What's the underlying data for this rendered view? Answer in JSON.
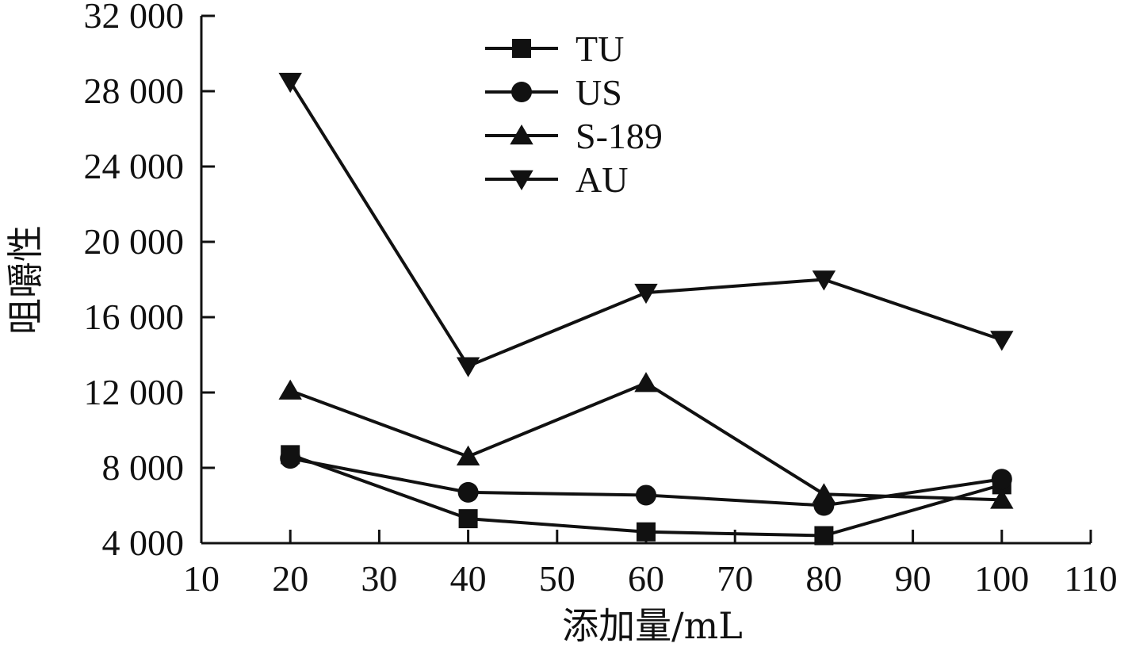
{
  "chart_data": {
    "type": "line",
    "title": "",
    "xlabel": "添加量/mL",
    "ylabel": "咀嚼性",
    "xlim": [
      10,
      110
    ],
    "ylim": [
      4000,
      32000
    ],
    "x_ticks": [
      10,
      20,
      30,
      40,
      50,
      60,
      70,
      80,
      90,
      100,
      110
    ],
    "y_ticks": [
      4000,
      8000,
      12000,
      16000,
      20000,
      24000,
      28000,
      32000
    ],
    "y_tick_labels": [
      "4 000",
      "8 000",
      "12 000",
      "16 000",
      "20 000",
      "24 000",
      "28 000",
      "32 000"
    ],
    "grid": false,
    "legend_position": "top-center",
    "x": [
      20,
      40,
      60,
      80,
      100
    ],
    "series": [
      {
        "name": "TU",
        "marker": "square",
        "color": "#111111",
        "values": [
          8700,
          5300,
          4600,
          4400,
          7100
        ]
      },
      {
        "name": "US",
        "marker": "circle",
        "color": "#111111",
        "values": [
          8500,
          6700,
          6550,
          6000,
          7400
        ]
      },
      {
        "name": "S-189",
        "marker": "triangle-up",
        "color": "#111111",
        "values": [
          12100,
          8600,
          12500,
          6600,
          6300
        ]
      },
      {
        "name": "AU",
        "marker": "triangle-down",
        "color": "#111111",
        "values": [
          28500,
          13400,
          17300,
          18000,
          14800
        ]
      }
    ]
  }
}
